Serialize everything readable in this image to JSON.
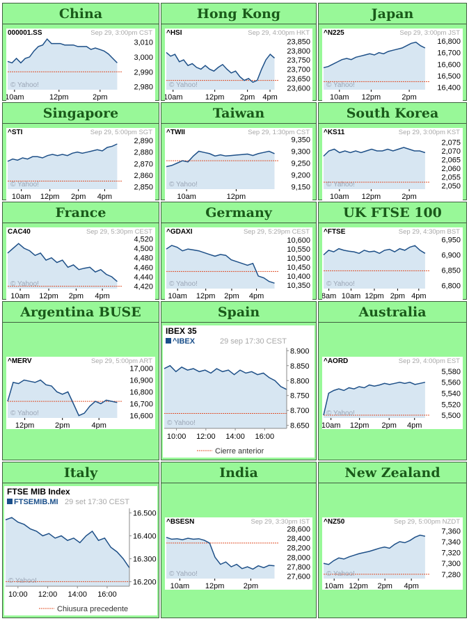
{
  "markets": [
    {
      "title": "China",
      "symbol": "000001.SS",
      "date": "Sep 29, 3:00pm CST",
      "yticks": [
        "3,010",
        "3,000",
        "2,990",
        "2,980"
      ],
      "yvals": [
        3010,
        3000,
        2990,
        2980
      ],
      "ylim": [
        2978,
        3013
      ],
      "xticks": [
        "10am",
        "12pm",
        "2pm"
      ],
      "xpos": [
        0.06,
        0.45,
        0.81
      ],
      "prev_close": 2990,
      "chart_data": {
        "type": "area",
        "values": [
          2997,
          2996,
          2999,
          2996,
          2999,
          3000,
          3004,
          3007,
          3008,
          3012,
          3009,
          3009,
          3009,
          3008,
          3008,
          3008,
          3007,
          3007,
          3007,
          3005,
          3006,
          3005,
          3004,
          3002,
          2999,
          2996
        ]
      }
    },
    {
      "title": "Hong Kong",
      "symbol": "^HSI",
      "date": "Sep 29, 4:00pm HKT",
      "yticks": [
        "23,850",
        "23,800",
        "23,750",
        "23,700",
        "23,650",
        "23,600"
      ],
      "yvals": [
        23850,
        23800,
        23750,
        23700,
        23650,
        23600
      ],
      "ylim": [
        23590,
        23870
      ],
      "xticks": [
        "10am",
        "12pm",
        "2pm",
        "4pm"
      ],
      "xpos": [
        0.06,
        0.43,
        0.72,
        0.92
      ],
      "prev_close": 23640,
      "chart_data": {
        "type": "area",
        "values": [
          23790,
          23770,
          23780,
          23740,
          23750,
          23720,
          23730,
          23710,
          23700,
          23720,
          23700,
          23690,
          23710,
          23725,
          23700,
          23680,
          23690,
          23660,
          23640,
          23650,
          23630,
          23640,
          23700,
          23750,
          23780,
          23760
        ]
      }
    },
    {
      "title": "Japan",
      "symbol": "^N225",
      "date": "Sep 29, 3:00pm JST",
      "yticks": [
        "16,800",
        "16,700",
        "16,600",
        "16,500",
        "16,400"
      ],
      "yvals": [
        16800,
        16700,
        16600,
        16500,
        16400
      ],
      "ylim": [
        16380,
        16830
      ],
      "xticks": [
        "10am",
        "12pm",
        "2pm"
      ],
      "xpos": [
        0.15,
        0.45,
        0.81
      ],
      "prev_close": 16450,
      "chart_data": {
        "type": "area",
        "values": [
          16570,
          16580,
          16600,
          16620,
          16640,
          16650,
          16640,
          16660,
          16670,
          16680,
          16690,
          16680,
          16700,
          16690,
          16710,
          16720,
          16730,
          16740,
          16760,
          16780,
          16790,
          16760,
          16740
        ]
      }
    },
    {
      "title": "Singapore",
      "symbol": "^STI",
      "date": "Sep 29, 5:00pm SGT",
      "yticks": [
        "2,890",
        "2,880",
        "2,870",
        "2,860",
        "2,850"
      ],
      "yvals": [
        2890,
        2880,
        2870,
        2860,
        2850
      ],
      "ylim": [
        2848,
        2893
      ],
      "xticks": [
        "10am",
        "12pm",
        "2pm",
        "4pm"
      ],
      "xpos": [
        0.12,
        0.37,
        0.62,
        0.85
      ],
      "prev_close": 2855,
      "chart_data": {
        "type": "area",
        "values": [
          2872,
          2874,
          2873,
          2875,
          2874,
          2876,
          2876,
          2875,
          2877,
          2878,
          2877,
          2878,
          2877,
          2879,
          2880,
          2879,
          2880,
          2881,
          2882,
          2881,
          2884,
          2885,
          2887
        ]
      }
    },
    {
      "title": "Taiwan",
      "symbol": "^TWII",
      "date": "Sep 29, 1:30pm CST",
      "yticks": [
        "9,350",
        "9,300",
        "9,250",
        "9,200",
        "9,150"
      ],
      "yvals": [
        9350,
        9300,
        9250,
        9200,
        9150
      ],
      "ylim": [
        9140,
        9360
      ],
      "xticks": [
        "10am",
        "12pm"
      ],
      "xpos": [
        0.18,
        0.62
      ],
      "prev_close": 9260,
      "chart_data": {
        "type": "area",
        "values": [
          9235,
          9240,
          9250,
          9260,
          9255,
          9280,
          9300,
          9295,
          9290,
          9280,
          9285,
          9280,
          9282,
          9284,
          9286,
          9288,
          9282,
          9290,
          9295,
          9300,
          9290
        ]
      }
    },
    {
      "title": "South Korea",
      "symbol": "^KS11",
      "date": "Sep 29, 3:00pm KST",
      "yticks": [
        "2,075",
        "2,070",
        "2,065",
        "2,060",
        "2,055",
        "2,050"
      ],
      "yvals": [
        2075,
        2070,
        2065,
        2060,
        2055,
        2050
      ],
      "ylim": [
        2048,
        2078
      ],
      "xticks": [
        "10am",
        "12pm",
        "2pm"
      ],
      "xpos": [
        0.15,
        0.45,
        0.81
      ],
      "prev_close": 2052,
      "chart_data": {
        "type": "area",
        "values": [
          2067,
          2070,
          2071,
          2069,
          2070,
          2069,
          2070,
          2069,
          2070,
          2071,
          2070,
          2070,
          2071,
          2070,
          2071,
          2072,
          2071,
          2070,
          2070,
          2069
        ]
      }
    },
    {
      "title": "France",
      "symbol": "CAC40",
      "date": "Sep 29, 5:30pm CEST",
      "yticks": [
        "4,520",
        "4,500",
        "4,480",
        "4,460",
        "4,440",
        "4,420"
      ],
      "yvals": [
        4520,
        4500,
        4480,
        4460,
        4440,
        4420
      ],
      "ylim": [
        4415,
        4525
      ],
      "xticks": [
        "10am",
        "12pm",
        "2pm",
        "4pm"
      ],
      "xpos": [
        0.11,
        0.36,
        0.6,
        0.83
      ],
      "prev_close": 4420,
      "chart_data": {
        "type": "area",
        "values": [
          4490,
          4500,
          4510,
          4500,
          4495,
          4485,
          4490,
          4475,
          4480,
          4470,
          4475,
          4460,
          4465,
          4455,
          4458,
          4460,
          4450,
          4455,
          4445,
          4440,
          4430
        ]
      }
    },
    {
      "title": "Germany",
      "symbol": "^GDAXI",
      "date": "Sep 29, 5:29pm CEST",
      "yticks": [
        "10,600",
        "10,550",
        "10,500",
        "10,450",
        "10,400",
        "10,350"
      ],
      "yvals": [
        10600,
        10550,
        10500,
        10450,
        10400,
        10350
      ],
      "ylim": [
        10330,
        10620
      ],
      "xticks": [
        "10am",
        "12pm",
        "2pm",
        "4pm"
      ],
      "xpos": [
        0.1,
        0.35,
        0.58,
        0.8
      ],
      "prev_close": 10425,
      "chart_data": {
        "type": "area",
        "values": [
          10550,
          10570,
          10560,
          10540,
          10550,
          10545,
          10540,
          10530,
          10520,
          10510,
          10520,
          10515,
          10490,
          10480,
          10470,
          10460,
          10470,
          10400,
          10390,
          10370,
          10360
        ]
      }
    },
    {
      "title": "UK FTSE 100",
      "symbol": "^FTSE",
      "date": "Sep 29, 4:30pm BST",
      "yticks": [
        "6,950",
        "6,900",
        "6,850",
        "6,800"
      ],
      "yvals": [
        6950,
        6900,
        6850,
        6800
      ],
      "ylim": [
        6790,
        6960
      ],
      "xticks": [
        "8am",
        "10am",
        "12pm",
        "2pm",
        "4pm"
      ],
      "xpos": [
        0.05,
        0.26,
        0.48,
        0.7,
        0.9
      ],
      "prev_close": 6848,
      "chart_data": {
        "type": "area",
        "values": [
          6900,
          6915,
          6910,
          6920,
          6915,
          6912,
          6910,
          6905,
          6915,
          6910,
          6912,
          6905,
          6915,
          6918,
          6910,
          6920,
          6915,
          6925,
          6930,
          6915,
          6905
        ]
      }
    },
    {
      "title": "Argentina BUSE",
      "symbol": "^MERV",
      "date": "Sep 29, 5:00pm ART",
      "yticks": [
        "17,000",
        "16,900",
        "16,800",
        "16,700",
        "16,600"
      ],
      "yvals": [
        17000,
        16900,
        16800,
        16700,
        16600
      ],
      "ylim": [
        16580,
        17020
      ],
      "xticks": [
        "12pm",
        "2pm",
        "4pm"
      ],
      "xpos": [
        0.15,
        0.48,
        0.8
      ],
      "prev_close": 16720,
      "chart_data": {
        "type": "area",
        "values": [
          16720,
          16880,
          16870,
          16900,
          16890,
          16880,
          16900,
          16860,
          16850,
          16800,
          16780,
          16800,
          16700,
          16600,
          16620,
          16680,
          16720,
          16700,
          16730,
          16720,
          16710
        ]
      }
    },
    {
      "title": "Australia",
      "symbol": "^AORD",
      "date": "Sep 29, 4:00pm EST",
      "yticks": [
        "5,580",
        "5,560",
        "5,540",
        "5,520",
        "5,500"
      ],
      "yvals": [
        5580,
        5560,
        5540,
        5520,
        5500
      ],
      "ylim": [
        5495,
        5590
      ],
      "xticks": [
        "10am",
        "12pm",
        "2pm",
        "4pm"
      ],
      "xpos": [
        0.07,
        0.34,
        0.62,
        0.86
      ],
      "prev_close": 5500,
      "chart_data": {
        "type": "area",
        "values": [
          5500,
          5540,
          5545,
          5548,
          5545,
          5550,
          5548,
          5552,
          5550,
          5555,
          5553,
          5555,
          5558,
          5556,
          5558,
          5560,
          5558,
          5560,
          5556,
          5558,
          5560
        ]
      }
    },
    {
      "title": "India",
      "symbol": "^BSESN",
      "date": "Sep 29, 3:30pm IST",
      "yticks": [
        "28,600",
        "28,400",
        "28,200",
        "28,000",
        "27,800",
        "27,600"
      ],
      "yvals": [
        28600,
        28400,
        28200,
        28000,
        27800,
        27600
      ],
      "ylim": [
        27550,
        28650
      ],
      "xticks": [
        "10am",
        "12pm",
        "2pm"
      ],
      "xpos": [
        0.12,
        0.43,
        0.75
      ],
      "prev_close": 28300,
      "chart_data": {
        "type": "area",
        "values": [
          28420,
          28380,
          28390,
          28370,
          28400,
          28380,
          28390,
          28360,
          28300,
          28000,
          27850,
          27900,
          27800,
          27850,
          27760,
          27800,
          27750,
          27820,
          27780,
          27830,
          27820
        ]
      }
    },
    {
      "title": "New Zealand",
      "symbol": "^NZ50",
      "date": "Sep 29, 5:00pm NZDT",
      "yticks": [
        "7,360",
        "7,340",
        "7,320",
        "7,300",
        "7,280"
      ],
      "yvals": [
        7360,
        7340,
        7320,
        7300,
        7280
      ],
      "ylim": [
        7272,
        7368
      ],
      "xticks": [
        "10am",
        "12pm",
        "2pm",
        "4pm"
      ],
      "xpos": [
        0.1,
        0.33,
        0.58,
        0.83
      ],
      "prev_close": 7280,
      "chart_data": {
        "type": "area",
        "values": [
          7300,
          7298,
          7305,
          7310,
          7308,
          7312,
          7315,
          7318,
          7320,
          7322,
          7325,
          7328,
          7330,
          7328,
          7335,
          7340,
          7338,
          7342,
          7348,
          7352,
          7350
        ]
      }
    }
  ],
  "big": [
    {
      "title": "Spain",
      "chart_title": "IBEX 35",
      "symbol": "^IBEX",
      "date": "29 sep 17:30 CEST",
      "yticks": [
        "8.900",
        "8.850",
        "8.800",
        "8.750",
        "8.700",
        "8.650"
      ],
      "yvals": [
        8900,
        8850,
        8800,
        8750,
        8700,
        8650
      ],
      "ylim": [
        8640,
        8910
      ],
      "xticks": [
        "10:00",
        "12:00",
        "14:00",
        "16:00"
      ],
      "xpos": [
        0.1,
        0.34,
        0.58,
        0.82
      ],
      "prev_close": 8690,
      "legend": "Cierre anterior",
      "chart_data": {
        "type": "area",
        "values": [
          8840,
          8850,
          8830,
          8845,
          8835,
          8840,
          8830,
          8835,
          8825,
          8840,
          8830,
          8835,
          8820,
          8835,
          8825,
          8830,
          8820,
          8825,
          8810,
          8800,
          8780,
          8770
        ]
      }
    },
    {
      "title": "Italy",
      "chart_title": "FTSE MIB Index",
      "symbol": "FTSEMIB.MI",
      "date": "29 set 17:30 CEST",
      "yticks": [
        "16.500",
        "16.400",
        "16.300",
        "16.200"
      ],
      "yvals": [
        16500,
        16400,
        16300,
        16200
      ],
      "ylim": [
        16180,
        16520
      ],
      "xticks": [
        "10:00",
        "12:00",
        "14:00",
        "16:00"
      ],
      "xpos": [
        0.1,
        0.34,
        0.58,
        0.82
      ],
      "prev_close": 16200,
      "legend": "Chiusura precedente",
      "chart_data": {
        "type": "area",
        "values": [
          16470,
          16480,
          16460,
          16450,
          16430,
          16420,
          16400,
          16410,
          16390,
          16400,
          16380,
          16390,
          16370,
          16400,
          16420,
          16380,
          16390,
          16350,
          16330,
          16300,
          16260
        ]
      }
    }
  ],
  "watermark": "© Yahoo!"
}
